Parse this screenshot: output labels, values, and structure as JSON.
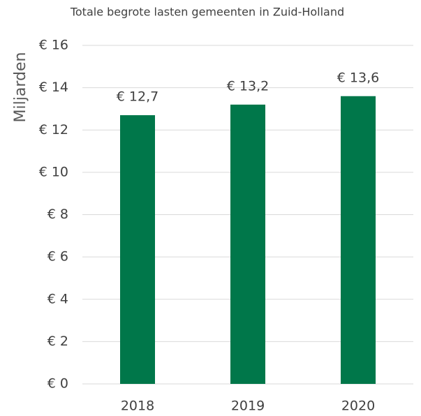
{
  "chart_data": {
    "type": "bar",
    "title": "Totale begrote lasten gemeenten in Zuid-Holland",
    "y_label": "Miljarden",
    "categories": [
      "2018",
      "2019",
      "2020"
    ],
    "values": [
      12.7,
      13.2,
      13.6
    ],
    "value_labels": [
      "€ 12,7",
      "€ 13,2",
      "€ 13,6"
    ],
    "color": "#00774a",
    "ylim": [
      0,
      16
    ],
    "yticks": [
      {
        "value": 0,
        "label": "€ 0"
      },
      {
        "value": 2,
        "label": "€ 2"
      },
      {
        "value": 4,
        "label": "€ 4"
      },
      {
        "value": 6,
        "label": "€ 6"
      },
      {
        "value": 8,
        "label": "€ 8"
      },
      {
        "value": 10,
        "label": "€ 10"
      },
      {
        "value": 12,
        "label": "€ 12"
      },
      {
        "value": 14,
        "label": "€ 14"
      },
      {
        "value": 16,
        "label": "€ 16"
      }
    ],
    "grid": true
  }
}
